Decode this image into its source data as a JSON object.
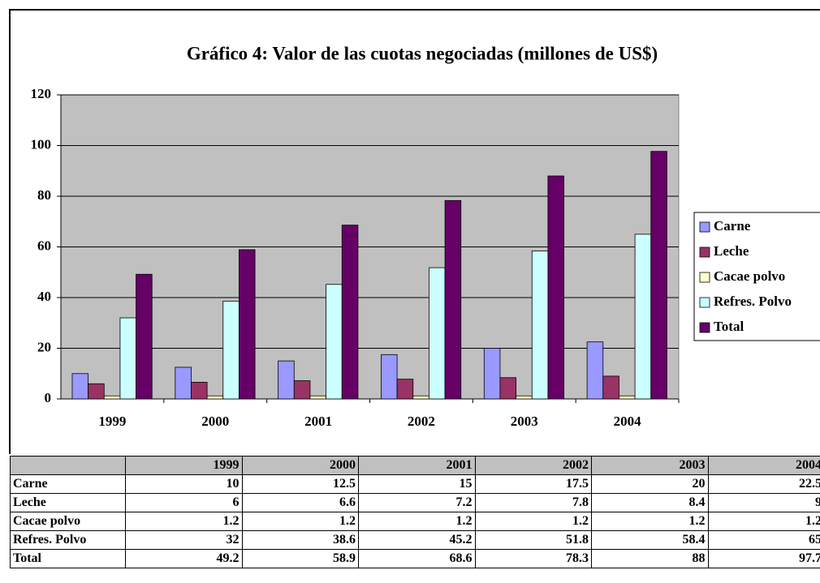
{
  "chart_data": {
    "type": "bar",
    "title": "Gráfico 4: Valor de las cuotas negociadas (millones de US$)",
    "categories": [
      "1999",
      "2000",
      "2001",
      "2002",
      "2003",
      "2004"
    ],
    "series": [
      {
        "name": "Carne",
        "color": "#9999ff",
        "values": [
          10,
          12.5,
          15,
          17.5,
          20,
          22.5
        ]
      },
      {
        "name": "Leche",
        "color": "#993366",
        "values": [
          6,
          6.6,
          7.2,
          7.8,
          8.4,
          9
        ]
      },
      {
        "name": "Cacae polvo",
        "color": "#ffffcc",
        "values": [
          1.2,
          1.2,
          1.2,
          1.2,
          1.2,
          1.2
        ]
      },
      {
        "name": "Refres. Polvo",
        "color": "#ccffff",
        "values": [
          32,
          38.6,
          45.2,
          51.8,
          58.4,
          65
        ]
      },
      {
        "name": "Total",
        "color": "#660066",
        "values": [
          49.2,
          58.9,
          68.6,
          78.3,
          88,
          97.7
        ]
      }
    ],
    "ylim": [
      0,
      120
    ],
    "yticks": [
      0,
      20,
      40,
      60,
      80,
      100,
      120
    ],
    "grid": true,
    "legend": "right"
  }
}
